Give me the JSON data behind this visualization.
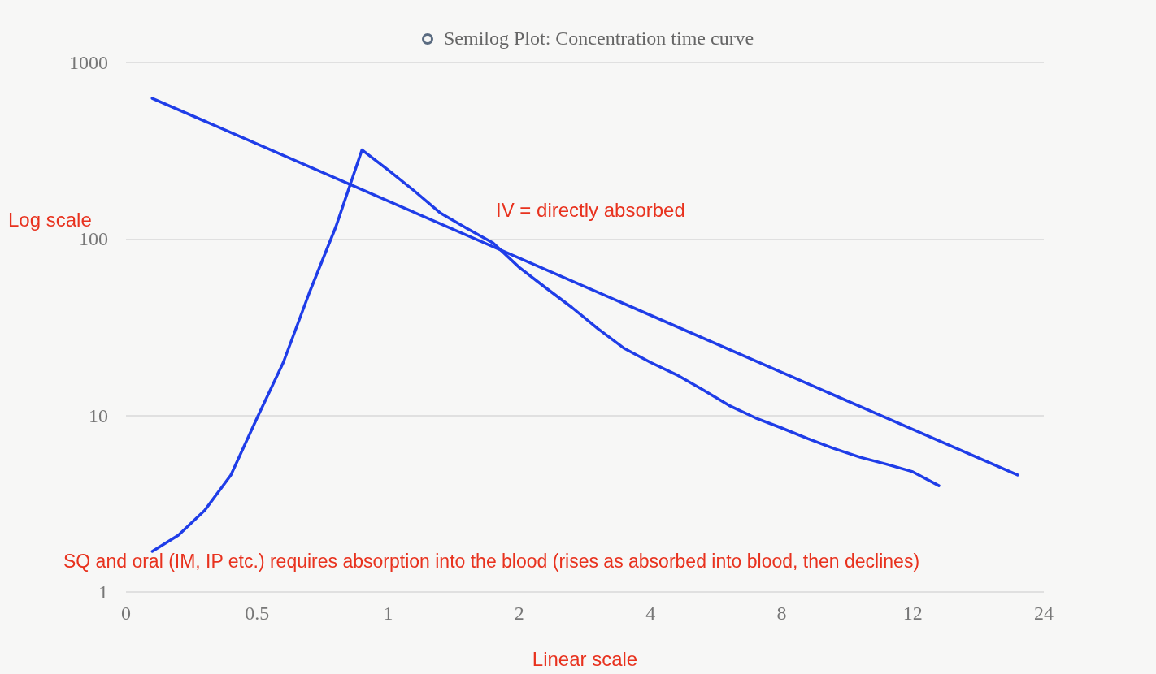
{
  "chart_data": {
    "type": "line",
    "title": "Semilog Plot: Concentration time curve",
    "xlabel": "Linear scale",
    "ylabel": "Log scale",
    "annotations": [
      "IV = directly absorbed",
      "SQ and oral (IM, IP etc.) requires absorption into the blood (rises as absorbed into blood, then declines)"
    ],
    "categories": [
      "0",
      null,
      null,
      null,
      null,
      "0.5",
      null,
      null,
      null,
      null,
      "1",
      null,
      null,
      null,
      null,
      "2",
      null,
      null,
      null,
      null,
      "4",
      null,
      null,
      null,
      null,
      "8",
      null,
      null,
      null,
      null,
      "12",
      null,
      null,
      null,
      null,
      "24"
    ],
    "series": [
      {
        "color": "#1f3de8",
        "values": [
          null,
          627,
          null,
          null,
          null,
          null,
          null,
          null,
          null,
          null,
          null,
          null,
          null,
          null,
          null,
          null,
          null,
          null,
          null,
          null,
          null,
          null,
          null,
          null,
          null,
          null,
          null,
          null,
          null,
          null,
          null,
          null,
          null,
          null,
          4.6,
          null
        ]
      },
      {
        "color": "#1f3de8",
        "values": [
          null,
          1.7,
          2.1,
          2.9,
          4.6,
          9.7,
          20,
          50,
          117,
          320,
          246,
          187,
          140,
          115,
          95,
          69,
          53,
          41,
          31,
          24,
          20,
          17,
          14,
          11.4,
          9.7,
          8.5,
          7.4,
          6.5,
          5.8,
          5.3,
          4.8,
          4.0,
          null,
          null,
          null,
          null
        ]
      }
    ],
    "ylim": [
      1,
      1000
    ],
    "yticks": [
      1,
      10,
      100,
      1000
    ],
    "log": "y",
    "grid": "y",
    "marker": "none",
    "line_style": "solid"
  }
}
